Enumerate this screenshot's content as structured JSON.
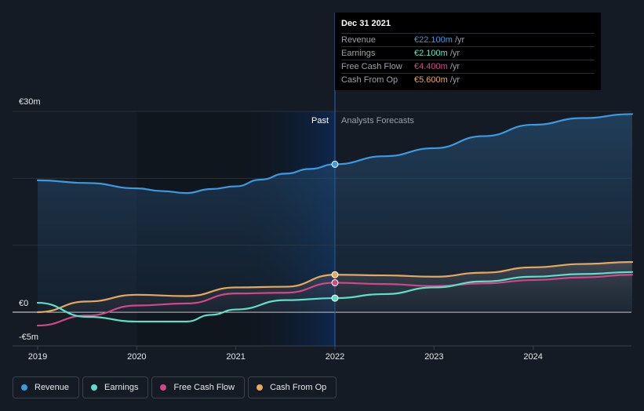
{
  "chart_data": {
    "type": "line",
    "y_tick_labels": [
      "€30m",
      "€0",
      "-€5m"
    ],
    "y_ticks": [
      30,
      0,
      -5
    ],
    "ylim": [
      -5,
      30
    ],
    "xlim": [
      2019,
      2025
    ],
    "x_tick_labels": [
      "2019",
      "2020",
      "2021",
      "2022",
      "2023",
      "2024"
    ],
    "x_ticks": [
      2019,
      2020,
      2021,
      2022,
      2023,
      2024
    ],
    "region_labels": {
      "past": "Past",
      "forecast": "Analysts Forecasts"
    },
    "divider_x": 2022,
    "series": [
      {
        "name": "Revenue",
        "color": "#3b9ae1",
        "points": [
          [
            2019,
            19.7
          ],
          [
            2019.5,
            19.3
          ],
          [
            2020,
            18.5
          ],
          [
            2020.25,
            18.1
          ],
          [
            2020.5,
            17.8
          ],
          [
            2020.75,
            18.4
          ],
          [
            2021,
            18.8
          ],
          [
            2021.25,
            19.8
          ],
          [
            2021.5,
            20.7
          ],
          [
            2021.75,
            21.4
          ],
          [
            2022,
            22.1
          ],
          [
            2022.5,
            23.3
          ],
          [
            2023,
            24.5
          ],
          [
            2023.5,
            26.3
          ],
          [
            2024,
            28.0
          ],
          [
            2024.5,
            29.0
          ],
          [
            2025,
            29.6
          ]
        ]
      },
      {
        "name": "Earnings",
        "color": "#5ce0c8",
        "points": [
          [
            2019,
            1.4
          ],
          [
            2019.5,
            -0.7
          ],
          [
            2020,
            -1.4
          ],
          [
            2020.5,
            -1.4
          ],
          [
            2020.75,
            -0.4
          ],
          [
            2021,
            0.4
          ],
          [
            2021.5,
            1.8
          ],
          [
            2022,
            2.1
          ],
          [
            2022.5,
            2.7
          ],
          [
            2023,
            3.7
          ],
          [
            2023.5,
            4.6
          ],
          [
            2024,
            5.3
          ],
          [
            2024.5,
            5.7
          ],
          [
            2025,
            6.0
          ]
        ]
      },
      {
        "name": "Free Cash Flow",
        "color": "#d1478a",
        "points": [
          [
            2019,
            -2.0
          ],
          [
            2019.5,
            -0.5
          ],
          [
            2020,
            1.0
          ],
          [
            2020.5,
            1.3
          ],
          [
            2021,
            2.8
          ],
          [
            2021.5,
            2.9
          ],
          [
            2022,
            4.4
          ],
          [
            2022.5,
            4.2
          ],
          [
            2023,
            3.9
          ],
          [
            2023.5,
            4.3
          ],
          [
            2024,
            4.8
          ],
          [
            2024.5,
            5.2
          ],
          [
            2025,
            5.6
          ]
        ]
      },
      {
        "name": "Cash From Op",
        "color": "#e8a85a",
        "points": [
          [
            2019,
            0.0
          ],
          [
            2019.5,
            1.6
          ],
          [
            2020,
            2.6
          ],
          [
            2020.5,
            2.4
          ],
          [
            2021,
            3.7
          ],
          [
            2021.5,
            3.8
          ],
          [
            2022,
            5.6
          ],
          [
            2022.5,
            5.5
          ],
          [
            2023,
            5.3
          ],
          [
            2023.5,
            5.9
          ],
          [
            2024,
            6.7
          ],
          [
            2024.5,
            7.2
          ],
          [
            2025,
            7.5
          ]
        ]
      }
    ]
  },
  "tooltip": {
    "date": "Dec 31 2021",
    "rows": [
      {
        "name": "Revenue",
        "value": "€22.100m",
        "unit": "/yr",
        "color": "#3b9ae1"
      },
      {
        "name": "Earnings",
        "value": "€2.100m",
        "unit": "/yr",
        "color": "#5ce0c8"
      },
      {
        "name": "Free Cash Flow",
        "value": "€4.400m",
        "unit": "/yr",
        "color": "#d1478a"
      },
      {
        "name": "Cash From Op",
        "value": "€5.600m",
        "unit": "/yr",
        "color": "#e8a85a"
      }
    ]
  },
  "legend": [
    {
      "label": "Revenue",
      "color": "#3b9ae1"
    },
    {
      "label": "Earnings",
      "color": "#5ce0c8"
    },
    {
      "label": "Free Cash Flow",
      "color": "#d1478a"
    },
    {
      "label": "Cash From Op",
      "color": "#e8a85a"
    }
  ]
}
